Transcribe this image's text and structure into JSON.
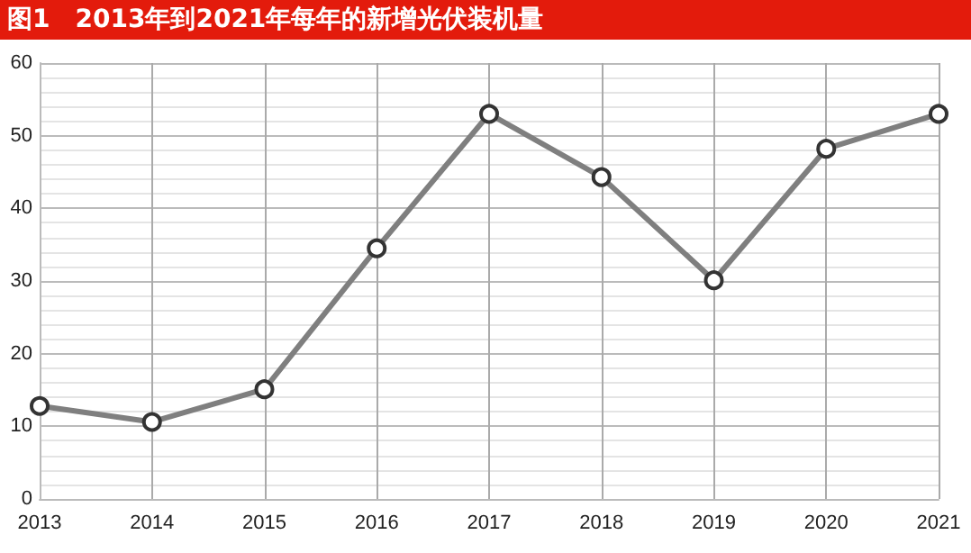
{
  "chart_data": {
    "type": "line",
    "title": "图1　2013年到2021年每年的新增光伏装机量",
    "categories": [
      "2013",
      "2014",
      "2015",
      "2016",
      "2017",
      "2018",
      "2019",
      "2020",
      "2021"
    ],
    "series": [
      {
        "color": "#7f7f7f",
        "values": [
          12.8,
          10.6,
          15.1,
          34.5,
          53,
          44.3,
          30.1,
          48.2,
          53
        ]
      }
    ],
    "ylim": [
      0,
      60
    ],
    "yticks": [
      0,
      10,
      20,
      30,
      40,
      50,
      60
    ],
    "grid": true,
    "marker": "circle",
    "line_style": "solid"
  }
}
